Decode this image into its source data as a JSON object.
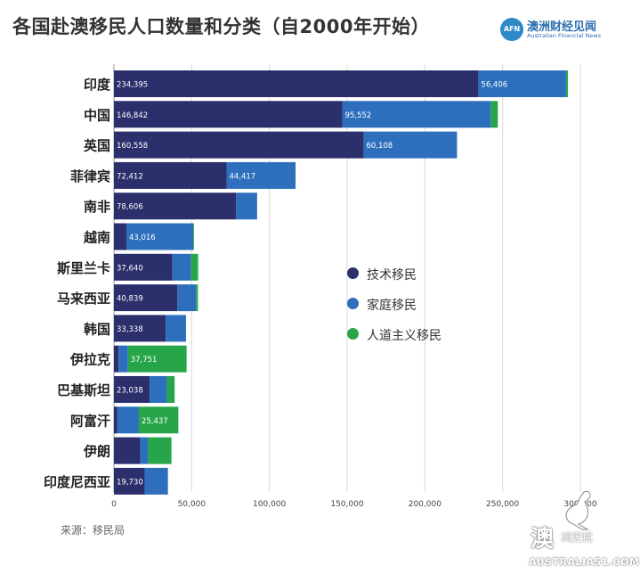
{
  "title": "各国赴澳移民人口数量和分类（自2000年开始）",
  "logo": {
    "name": "澳洲财经见闻",
    "subtitle": "Australian Financial News",
    "mark": "AFN"
  },
  "source": "来源：移民局",
  "watermark": {
    "big": "澳",
    "small": "洲无忧",
    "url": "AUSTRALIA51.COM"
  },
  "colors": {
    "skilled": "#2b2f6b",
    "family": "#2e6fbd",
    "humanitarian": "#27a649",
    "grid": "#d9d9d9"
  },
  "chart_data": {
    "type": "bar",
    "orientation": "horizontal",
    "stacked": true,
    "categories": [
      "印度",
      "中国",
      "英国",
      "菲律宾",
      "南非",
      "越南",
      "斯里兰卡",
      "马来西亚",
      "韩国",
      "伊拉克",
      "巴基斯坦",
      "阿富汗",
      "伊朗",
      "印度尼西亚"
    ],
    "series": [
      {
        "name": "技术移民",
        "key": "skilled",
        "values": [
          234395,
          146842,
          160558,
          72412,
          78606,
          8000,
          37640,
          40839,
          33338,
          3000,
          23038,
          2000,
          17000,
          19730
        ]
      },
      {
        "name": "家庭移民",
        "key": "family",
        "values": [
          56406,
          95552,
          60108,
          44417,
          13500,
          43016,
          12000,
          12000,
          13000,
          6000,
          11000,
          14000,
          5000,
          15000
        ]
      },
      {
        "name": "人道主义移民",
        "key": "humanitarian",
        "values": [
          1200,
          4500,
          0,
          0,
          0,
          500,
          4500,
          1200,
          0,
          37751,
          5000,
          25437,
          15000,
          0
        ]
      }
    ],
    "data_labels": [
      [
        "234,395",
        "56,406",
        ""
      ],
      [
        "146,842",
        "95,552",
        ""
      ],
      [
        "160,558",
        "60,108",
        ""
      ],
      [
        "72,412",
        "44,417",
        ""
      ],
      [
        "78,606",
        "",
        ""
      ],
      [
        "",
        "43,016",
        ""
      ],
      [
        "37,640",
        "",
        ""
      ],
      [
        "40,839",
        "",
        ""
      ],
      [
        "33,338",
        "",
        ""
      ],
      [
        "",
        "",
        "37,751"
      ],
      [
        "23,038",
        "",
        ""
      ],
      [
        "",
        "",
        "25,437"
      ],
      [
        "",
        "",
        ""
      ],
      [
        "19,730",
        "",
        ""
      ]
    ],
    "x_ticks": [
      0,
      50000,
      100000,
      150000,
      200000,
      250000,
      300000
    ],
    "x_tick_labels": [
      "0",
      "50,000",
      "100,000",
      "150,000",
      "200,000",
      "250,000",
      "300,000"
    ],
    "xlim": [
      0,
      300000
    ],
    "xlabel": "",
    "ylabel": "",
    "grid": true,
    "legend_position": "center-right"
  }
}
